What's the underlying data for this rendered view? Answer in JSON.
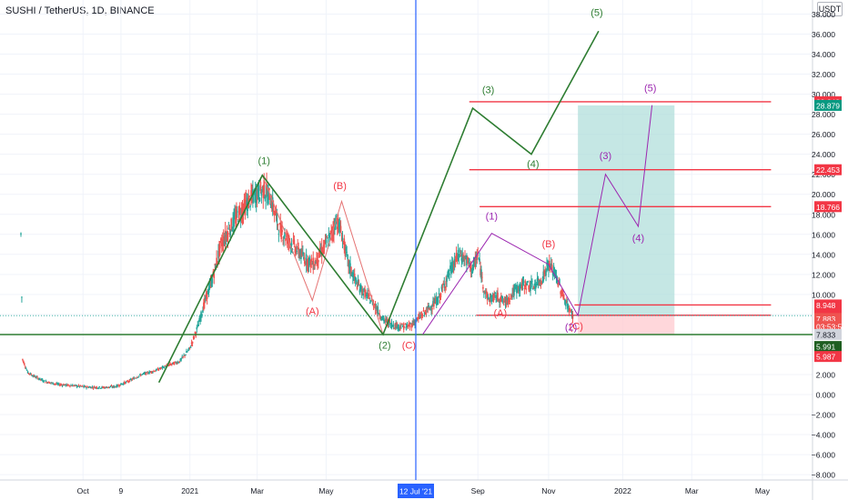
{
  "header": {
    "symbol_title": "SUSHI / TetherUS, 1D, BINANCE",
    "currency_badge": "USDT"
  },
  "colors": {
    "grid": "#f0f3fa",
    "up": "#26a69a",
    "down": "#ef5350",
    "green_wave": "#2e7d32",
    "red_level": "#f23645",
    "red_wave": "#e57373",
    "purple": "#9c27b0",
    "blue": "#2962ff",
    "target_zone": "#b2dfdb",
    "stop_zone": "#ffcdd2"
  },
  "chart_data": {
    "type": "candlestick",
    "title": "SUSHI / TetherUS, 1D, BINANCE",
    "xlabel": "",
    "ylabel": "",
    "ylim": [
      -9,
      38
    ],
    "y_ticks": [
      -8,
      -6,
      -4,
      -2,
      0,
      2,
      4,
      6,
      8,
      10,
      12,
      14,
      16,
      18,
      20,
      22,
      24,
      26,
      28,
      30,
      32,
      34,
      36,
      38
    ],
    "x_ticks": [
      {
        "label": "Oct",
        "d": 36
      },
      {
        "label": "9",
        "d": 58
      },
      {
        "label": "2021",
        "d": 98
      },
      {
        "label": "Mar",
        "d": 137
      },
      {
        "label": "May",
        "d": 177
      },
      {
        "label": "12 Jul '21",
        "d": 229
      },
      {
        "label": "Sep",
        "d": 265
      },
      {
        "label": "Nov",
        "d": 306
      },
      {
        "label": "2022",
        "d": 349
      },
      {
        "label": "Mar",
        "d": 389
      },
      {
        "label": "May",
        "d": 430
      }
    ],
    "price_series": [
      {
        "d": 0,
        "y": 16.0
      },
      {
        "d": 1,
        "y": 3.5
      },
      {
        "d": 4,
        "y": 2.2
      },
      {
        "d": 8,
        "y": 1.8
      },
      {
        "d": 14,
        "y": 1.3
      },
      {
        "d": 22,
        "y": 1.0
      },
      {
        "d": 30,
        "y": 0.9
      },
      {
        "d": 38,
        "y": 0.75
      },
      {
        "d": 48,
        "y": 0.7
      },
      {
        "d": 55,
        "y": 0.8
      },
      {
        "d": 62,
        "y": 1.3
      },
      {
        "d": 70,
        "y": 2.0
      },
      {
        "d": 78,
        "y": 2.4
      },
      {
        "d": 85,
        "y": 2.9
      },
      {
        "d": 92,
        "y": 3.3
      },
      {
        "d": 98,
        "y": 4.6
      },
      {
        "d": 103,
        "y": 7.0
      },
      {
        "d": 107,
        "y": 9.5
      },
      {
        "d": 111,
        "y": 11.5
      },
      {
        "d": 116,
        "y": 15.0
      },
      {
        "d": 121,
        "y": 16.5
      },
      {
        "d": 126,
        "y": 18.0
      },
      {
        "d": 131,
        "y": 19.0
      },
      {
        "d": 136,
        "y": 20.0
      },
      {
        "d": 141,
        "y": 20.5
      },
      {
        "d": 145,
        "y": 19.5
      },
      {
        "d": 150,
        "y": 16.5
      },
      {
        "d": 155,
        "y": 15.5
      },
      {
        "d": 160,
        "y": 14.5
      },
      {
        "d": 165,
        "y": 13.5
      },
      {
        "d": 170,
        "y": 13.0
      },
      {
        "d": 175,
        "y": 14.5
      },
      {
        "d": 180,
        "y": 16.0
      },
      {
        "d": 183,
        "y": 17.5
      },
      {
        "d": 186,
        "y": 16.0
      },
      {
        "d": 190,
        "y": 13.0
      },
      {
        "d": 195,
        "y": 11.0
      },
      {
        "d": 200,
        "y": 10.0
      },
      {
        "d": 205,
        "y": 9.0
      },
      {
        "d": 210,
        "y": 7.5
      },
      {
        "d": 215,
        "y": 7.0
      },
      {
        "d": 220,
        "y": 6.8
      },
      {
        "d": 225,
        "y": 6.8
      },
      {
        "d": 230,
        "y": 7.5
      },
      {
        "d": 236,
        "y": 8.5
      },
      {
        "d": 242,
        "y": 9.5
      },
      {
        "d": 248,
        "y": 12.0
      },
      {
        "d": 254,
        "y": 14.0
      },
      {
        "d": 258,
        "y": 13.5
      },
      {
        "d": 262,
        "y": 12.5
      },
      {
        "d": 265,
        "y": 14.0
      },
      {
        "d": 268,
        "y": 11.0
      },
      {
        "d": 271,
        "y": 9.5
      },
      {
        "d": 276,
        "y": 9.8
      },
      {
        "d": 281,
        "y": 9.2
      },
      {
        "d": 287,
        "y": 10.5
      },
      {
        "d": 292,
        "y": 11.0
      },
      {
        "d": 297,
        "y": 10.8
      },
      {
        "d": 302,
        "y": 11.5
      },
      {
        "d": 306,
        "y": 13.0
      },
      {
        "d": 310,
        "y": 12.0
      },
      {
        "d": 314,
        "y": 10.0
      },
      {
        "d": 318,
        "y": 8.5
      },
      {
        "d": 320,
        "y": 7.883
      }
    ],
    "annotations": {
      "vertical_line": {
        "d": 229,
        "label": "12 Jul '21"
      },
      "support_line": {
        "y": 5.991
      },
      "horizontal_levels": [
        {
          "y": 29.243,
          "d_start": 260,
          "d_end": 435
        },
        {
          "y": 22.453,
          "d_start": 260,
          "d_end": 435
        },
        {
          "y": 18.766,
          "d_start": 266,
          "d_end": 435
        },
        {
          "y": 8.948,
          "d_start": 321,
          "d_end": 435
        },
        {
          "y": 7.916,
          "d_start": 264,
          "d_end": 435
        }
      ],
      "long_position": {
        "d_start": 323,
        "d_end": 379,
        "entry": 7.883,
        "target": 28.879,
        "stop": 5.987
      },
      "wave_paths": {
        "green": [
          [
            80,
            1.2
          ],
          [
            140,
            21.9
          ],
          [
            210,
            6.0
          ],
          [
            262,
            28.6
          ],
          [
            296,
            24.0
          ],
          [
            335,
            36.3
          ]
        ],
        "red": [
          [
            140,
            21.9
          ],
          [
            169,
            9.4
          ],
          [
            186,
            19.3
          ],
          [
            210,
            6.0
          ]
        ],
        "purple": [
          [
            233,
            6.0
          ],
          [
            273,
            16.1
          ],
          [
            306,
            13.0
          ],
          [
            323,
            7.9
          ],
          [
            339,
            22.0
          ],
          [
            358,
            16.8
          ],
          [
            366,
            28.9
          ]
        ]
      },
      "wave_labels": [
        {
          "text": "(1)",
          "d": 141,
          "y": 23.0,
          "color": "green"
        },
        {
          "text": "(2)",
          "d": 211,
          "y": 4.6,
          "color": "green"
        },
        {
          "text": "(3)",
          "d": 271,
          "y": 30.1,
          "color": "green"
        },
        {
          "text": "(4)",
          "d": 297,
          "y": 22.7,
          "color": "green"
        },
        {
          "text": "(5)",
          "d": 334,
          "y": 37.8,
          "color": "green"
        },
        {
          "text": "(B)",
          "d": 185,
          "y": 20.5,
          "color": "red"
        },
        {
          "text": "(A)",
          "d": 169,
          "y": 8.0,
          "color": "red"
        },
        {
          "text": "(C)",
          "d": 225,
          "y": 4.6,
          "color": "red"
        },
        {
          "text": "(B)",
          "d": 306,
          "y": 14.7,
          "color": "red"
        },
        {
          "text": "(A)",
          "d": 278,
          "y": 7.8,
          "color": "red"
        },
        {
          "text": "(C)",
          "d": 322,
          "y": 6.5,
          "color": "red"
        },
        {
          "text": "(1)",
          "d": 273,
          "y": 17.5,
          "color": "purple"
        },
        {
          "text": "(3)",
          "d": 339,
          "y": 23.5,
          "color": "purple"
        },
        {
          "text": "(4)",
          "d": 358,
          "y": 15.3,
          "color": "purple"
        },
        {
          "text": "(5)",
          "d": 365,
          "y": 30.3,
          "color": "purple"
        },
        {
          "text": "(2)",
          "d": 319,
          "y": 6.4,
          "color": "purple"
        }
      ]
    },
    "price_labels": [
      {
        "value": "29.243",
        "y": 29.243,
        "bg": "#f23645",
        "fg": "#ffffff"
      },
      {
        "value": "28.879",
        "y": 28.879,
        "bg": "#089981",
        "fg": "#ffffff"
      },
      {
        "value": "22.453",
        "y": 22.453,
        "bg": "#f23645",
        "fg": "#ffffff"
      },
      {
        "value": "18.766",
        "y": 18.766,
        "bg": "#f23645",
        "fg": "#ffffff"
      },
      {
        "value": "8.948",
        "y": 8.948,
        "bg": "#f23645",
        "fg": "#ffffff"
      },
      {
        "value": "7.916",
        "y": 7.916,
        "bg": "#f23645",
        "fg": "#ffffff"
      },
      {
        "value": "7.883",
        "y": 7.6,
        "bg": "#ef5350",
        "fg": "#ffffff"
      },
      {
        "value": "03:53:52",
        "y": 6.8,
        "bg": "#ef5350",
        "fg": "#ffffff"
      },
      {
        "value": "7.833",
        "y": 6.0,
        "bg": "#d1d4dc",
        "fg": "#131722"
      },
      {
        "value": "5.991",
        "y": 4.8,
        "bg": "#1e5e20",
        "fg": "#ffffff"
      },
      {
        "value": "5.987",
        "y": 3.8,
        "bg": "#f23645",
        "fg": "#ffffff"
      }
    ]
  }
}
